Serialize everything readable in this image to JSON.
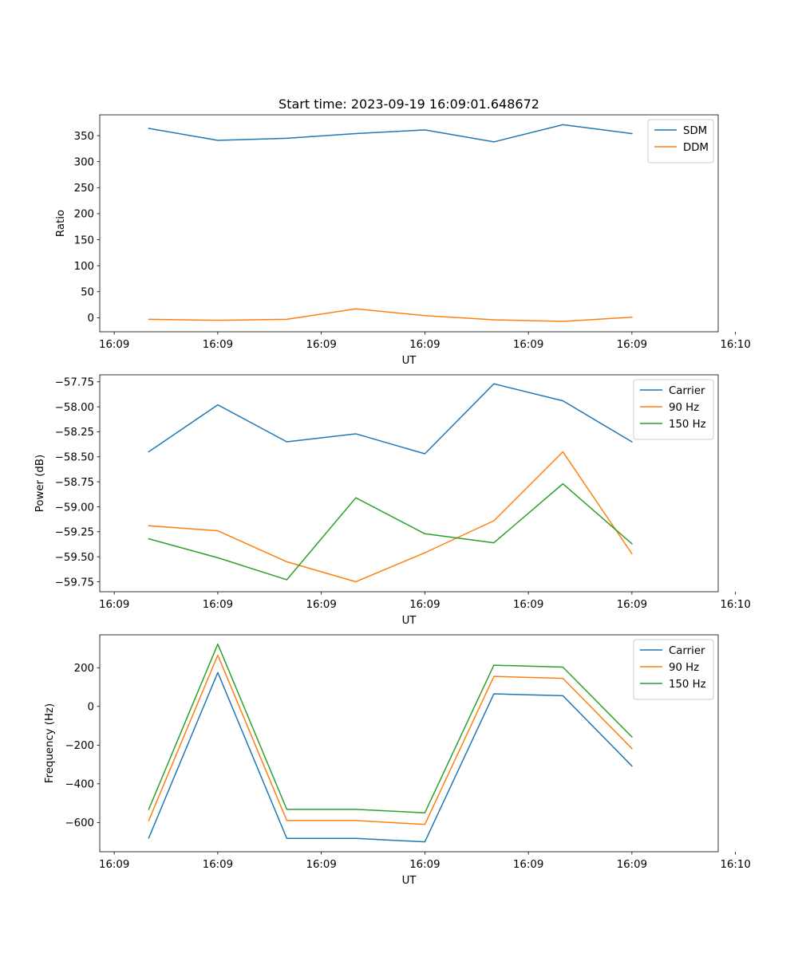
{
  "figure_title": "Start time: 2023-09-19 16:09:01.648672",
  "colors": {
    "blue": "#1f77b4",
    "orange": "#ff7f0e",
    "green": "#2ca02c"
  },
  "chart_data": [
    {
      "type": "line",
      "title": "Start time: 2023-09-19 16:09:01.648672",
      "xlabel": "UT",
      "ylabel": "Ratio",
      "x": [
        1,
        2,
        3,
        4,
        5,
        6,
        7,
        8
      ],
      "xlim": [
        0.29,
        9.25
      ],
      "xticks": [
        0.5,
        2,
        3.5,
        5,
        6.5,
        8,
        9.5
      ],
      "xtick_labels": [
        "16:09",
        "16:09",
        "16:09",
        "16:09",
        "16:09",
        "16:09",
        "16:10"
      ],
      "ylim": [
        -27,
        390
      ],
      "yticks": [
        0,
        50,
        100,
        150,
        200,
        250,
        300,
        350
      ],
      "ytick_labels": [
        "0",
        "50",
        "100",
        "150",
        "200",
        "250",
        "300",
        "350"
      ],
      "series": [
        {
          "name": "SDM",
          "color": "#1f77b4",
          "values": [
            364,
            341,
            345,
            354,
            361,
            338,
            371,
            354
          ]
        },
        {
          "name": "DDM",
          "color": "#ff7f0e",
          "values": [
            -3,
            -5,
            -3,
            17,
            4,
            -4,
            -7,
            1
          ]
        }
      ],
      "legend": "upper right"
    },
    {
      "type": "line",
      "title": "",
      "xlabel": "UT",
      "ylabel": "Power (dB)",
      "x": [
        1,
        2,
        3,
        4,
        5,
        6,
        7,
        8
      ],
      "xlim": [
        0.29,
        9.25
      ],
      "xticks": [
        0.5,
        2,
        3.5,
        5,
        6.5,
        8,
        9.5
      ],
      "xtick_labels": [
        "16:09",
        "16:09",
        "16:09",
        "16:09",
        "16:09",
        "16:09",
        "16:10"
      ],
      "ylim": [
        -59.85,
        -57.68
      ],
      "yticks": [
        -59.75,
        -59.5,
        -59.25,
        -59.0,
        -58.75,
        -58.5,
        -58.25,
        -58.0,
        -57.75
      ],
      "ytick_labels": [
        "−59.75",
        "−59.50",
        "−59.25",
        "−59.00",
        "−58.75",
        "−58.50",
        "−58.25",
        "−58.00",
        "−57.75"
      ],
      "series": [
        {
          "name": "Carrier",
          "color": "#1f77b4",
          "values": [
            -58.45,
            -57.98,
            -58.35,
            -58.27,
            -58.47,
            -57.77,
            -57.94,
            -58.35
          ]
        },
        {
          "name": "90 Hz",
          "color": "#ff7f0e",
          "values": [
            -59.19,
            -59.24,
            -59.55,
            -59.75,
            -59.46,
            -59.14,
            -58.45,
            -59.47
          ]
        },
        {
          "name": "150 Hz",
          "color": "#2ca02c",
          "values": [
            -59.32,
            -59.51,
            -59.73,
            -58.91,
            -59.27,
            -59.36,
            -58.77,
            -59.37
          ]
        }
      ],
      "legend": "upper right"
    },
    {
      "type": "line",
      "title": "",
      "xlabel": "UT",
      "ylabel": "Frequency (Hz)",
      "x": [
        1,
        2,
        3,
        4,
        5,
        6,
        7,
        8
      ],
      "xlim": [
        0.29,
        9.25
      ],
      "xticks": [
        0.5,
        2,
        3.5,
        5,
        6.5,
        8,
        9.5
      ],
      "xtick_labels": [
        "16:09",
        "16:09",
        "16:09",
        "16:09",
        "16:09",
        "16:09",
        "16:10"
      ],
      "ylim": [
        -751,
        370
      ],
      "yticks": [
        -600,
        -400,
        -200,
        0,
        200
      ],
      "ytick_labels": [
        "−600",
        "−400",
        "−200",
        "0",
        "200"
      ],
      "series": [
        {
          "name": "Carrier",
          "color": "#1f77b4",
          "values": [
            -680,
            175,
            -682,
            -682,
            -700,
            65,
            55,
            -308
          ]
        },
        {
          "name": "90 Hz",
          "color": "#ff7f0e",
          "values": [
            -590,
            265,
            -590,
            -590,
            -610,
            155,
            145,
            -218
          ]
        },
        {
          "name": "150 Hz",
          "color": "#2ca02c",
          "values": [
            -532,
            322,
            -532,
            -532,
            -550,
            213,
            203,
            -158
          ]
        }
      ],
      "legend": "upper right"
    }
  ]
}
